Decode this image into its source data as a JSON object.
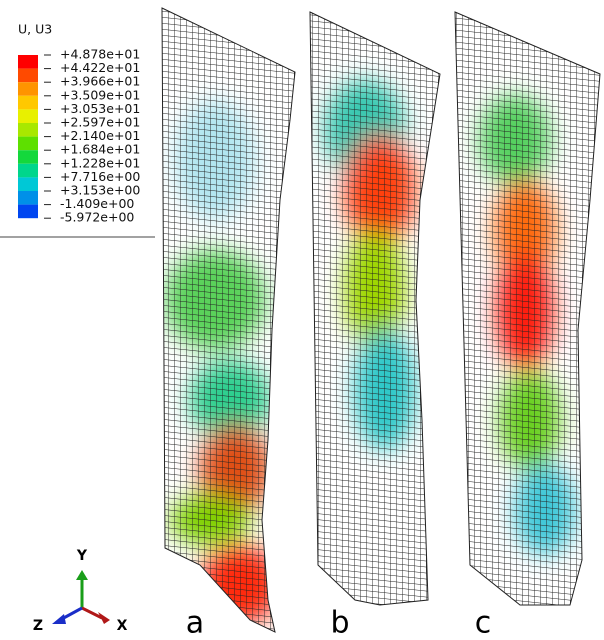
{
  "legend": {
    "title": "U, U3",
    "labels": [
      "+4.878e+01",
      "+4.422e+01",
      "+3.966e+01",
      "+3.509e+01",
      "+3.053e+01",
      "+2.597e+01",
      "+2.140e+01",
      "+1.684e+01",
      "+1.228e+01",
      "+7.716e+00",
      "+3.153e+00",
      "-1.409e+00",
      "-5.972e+00"
    ]
  },
  "triad": {
    "y": "Y",
    "z": "Z",
    "x": "X"
  },
  "panels": [
    "a",
    "b",
    "c"
  ]
}
